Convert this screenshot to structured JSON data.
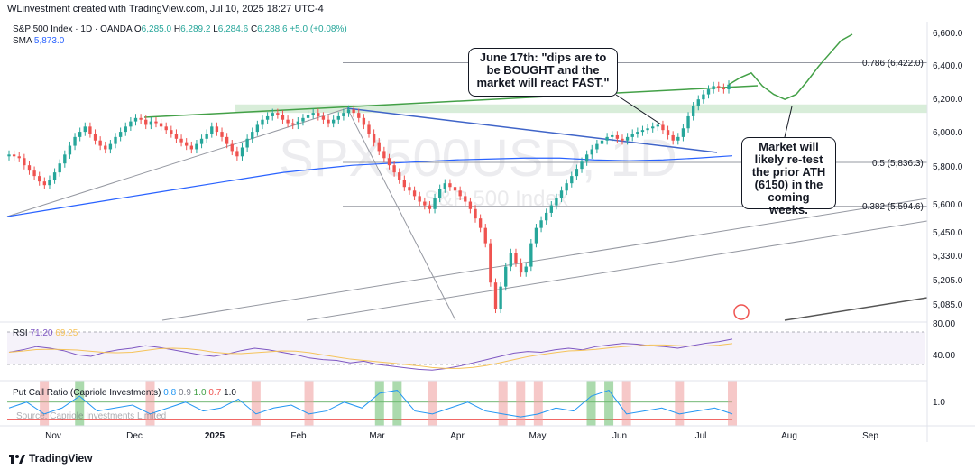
{
  "header": {
    "text": "WLinvestment created with TradingView.com, Jul 10, 2025 18:27 UTC-4"
  },
  "legend": {
    "symbol": "S&P 500 Index · 1D · OANDA",
    "o_label": "O",
    "o": "6,285.0",
    "h_label": "H",
    "h": "6,289.2",
    "l_label": "L",
    "l": "6,284.6",
    "c_label": "C",
    "c": "6,288.6",
    "change": "+5.0 (+0.08%)",
    "sma_label": "SMA",
    "sma": "5,873.0"
  },
  "watermark": {
    "symbol": "SPX500USD, 1D",
    "name": "S&P 500 Index"
  },
  "notes": {
    "note1": "June 17th: \"dips are to be BOUGHT and the market will react FAST.\"",
    "note2": "Market will likely re-test the prior ATH (6150) in the coming weeks."
  },
  "fib_labels": [
    "0.786 (6,422.0)",
    "0.5 (5,836.3)",
    "0.382 (5,594.6)"
  ],
  "rsi_legend": {
    "label": "RSI",
    "v1": "71.20",
    "v2": "69.25"
  },
  "pcr_legend": {
    "label": "Put Call Ratio (Capriole Investments)",
    "a": "0.8",
    "b": "0.9",
    "c": "1.0",
    "d": "0.7",
    "e": "1.0"
  },
  "pcr_source": "Source: Capriole Investments Limited",
  "footer": {
    "text": "TradingView"
  },
  "colors": {
    "up": "#26a69a",
    "down": "#ef5350",
    "sma": "#2962ff",
    "green_line": "#43a047",
    "blue_line": "#3f64c8",
    "rsi": "#7e57c2",
    "rsi_ma": "#f5c35a",
    "pcr": "#2196f3"
  },
  "chart_data": {
    "type": "candlestick",
    "title": "S&P 500 Index · 1D · OANDA",
    "x_labels": [
      "Nov",
      "Dec",
      "2025",
      "Feb",
      "Mar",
      "Apr",
      "May",
      "Jun",
      "Jul",
      "Aug",
      "Sep"
    ],
    "y_ticks": [
      "6,600.0",
      "6,400.0",
      "6,200.0",
      "6,000.0",
      "5,800.0",
      "5,600.0",
      "5,450.0",
      "5,330.0",
      "5,205.0",
      "5,085.0"
    ],
    "y_scale": "log",
    "rsi_ticks": [
      "80.00",
      "40.00"
    ],
    "pcr_ticks": [
      "1.0"
    ],
    "closes": [
      5880,
      5870,
      5860,
      5820,
      5790,
      5760,
      5730,
      5710,
      5740,
      5780,
      5830,
      5880,
      5930,
      5980,
      6010,
      6040,
      6000,
      5960,
      5930,
      5910,
      5940,
      5980,
      6010,
      6040,
      6070,
      6090,
      6080,
      6050,
      6070,
      6060,
      6040,
      6020,
      6000,
      5970,
      5950,
      5930,
      5910,
      5940,
      5970,
      6000,
      6040,
      6010,
      5980,
      5940,
      5900,
      5870,
      5920,
      5970,
      6010,
      6050,
      6080,
      6100,
      6120,
      6110,
      6080,
      6060,
      6050,
      6070,
      6090,
      6110,
      6120,
      6100,
      6080,
      6060,
      6080,
      6100,
      6120,
      6140,
      6120,
      6090,
      6050,
      6000,
      5950,
      5900,
      5860,
      5820,
      5780,
      5740,
      5700,
      5680,
      5650,
      5620,
      5600,
      5580,
      5640,
      5690,
      5720,
      5700,
      5680,
      5650,
      5620,
      5580,
      5530,
      5480,
      5400,
      5200,
      5070,
      5180,
      5280,
      5350,
      5300,
      5250,
      5280,
      5400,
      5480,
      5520,
      5560,
      5600,
      5640,
      5680,
      5720,
      5760,
      5800,
      5840,
      5880,
      5910,
      5940,
      5960,
      5980,
      5990,
      5970,
      5960,
      5980,
      6000,
      6010,
      6020,
      6030,
      6040,
      6050,
      6020,
      5990,
      5960,
      5980,
      6030,
      6100,
      6160,
      6200,
      6230,
      6260,
      6280,
      6270,
      6260,
      6288.6
    ],
    "sma200": [
      5540,
      5570,
      5600,
      5630,
      5660,
      5690,
      5720,
      5750,
      5780,
      5800,
      5820,
      5830,
      5840,
      5850,
      5855,
      5860,
      5860,
      5850,
      5845,
      5850,
      5860,
      5873
    ],
    "fib_levels": [
      {
        "ratio": "0.786",
        "value": 6422.0
      },
      {
        "ratio": "0.5",
        "value": 5836.3
      },
      {
        "ratio": "0.382",
        "value": 5594.6
      }
    ],
    "prior_ath_zone": [
      6120,
      6170
    ],
    "projection": [
      6288.6,
      6330,
      6360,
      6280,
      6230,
      6200,
      6230,
      6310,
      6400,
      6480,
      6560,
      6600
    ],
    "rsi": [
      55,
      58,
      62,
      60,
      57,
      52,
      50,
      55,
      58,
      60,
      63,
      61,
      58,
      55,
      52,
      50,
      53,
      57,
      60,
      58,
      55,
      52,
      48,
      46,
      45,
      42,
      44,
      40,
      38,
      36,
      34,
      33,
      35,
      38,
      42,
      46,
      50,
      54,
      56,
      55,
      58,
      60,
      58,
      62,
      64,
      66,
      65,
      63,
      62,
      60,
      63,
      66,
      68,
      71.2
    ],
    "pcr": [
      0.9,
      1.0,
      0.8,
      0.9,
      1.1,
      0.85,
      0.9,
      0.95,
      0.8,
      0.9,
      1.0,
      0.85,
      0.9,
      1.05,
      0.8,
      0.9,
      0.95,
      0.8,
      0.85,
      1.0,
      0.9,
      1.15,
      1.2,
      0.85,
      0.8,
      0.9,
      1.0,
      0.85,
      0.8,
      0.75,
      0.8,
      0.9,
      0.85,
      1.1,
      1.2,
      0.8,
      0.85,
      0.9,
      0.8,
      0.85,
      0.9,
      0.8
    ]
  }
}
